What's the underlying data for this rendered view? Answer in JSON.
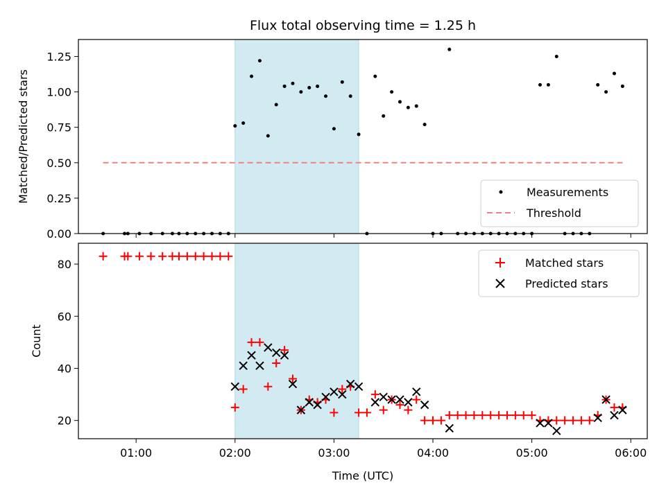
{
  "chart_data": [
    {
      "type": "scatter",
      "title": "Flux total observing time = 1.25 h",
      "xlabel": "",
      "ylabel": "Matched/Predicted stars",
      "xlim": [
        "00:25",
        "06:10"
      ],
      "ylim": [
        0,
        1.37
      ],
      "yticks": [
        "0.00",
        "0.25",
        "0.50",
        "0.75",
        "1.00",
        "1.25"
      ],
      "highlight_span": [
        "02:00",
        "03:15"
      ],
      "highlight_color": "#add8e6",
      "legend_position": "lower-right",
      "series": [
        {
          "name": "Measurements",
          "marker": "dot",
          "color": "#000000",
          "points": [
            [
              "00:40",
              0
            ],
            [
              "00:53",
              0
            ],
            [
              "00:55",
              0
            ],
            [
              "01:02",
              0
            ],
            [
              "01:09",
              0
            ],
            [
              "01:16",
              0
            ],
            [
              "01:22",
              0
            ],
            [
              "01:26",
              0
            ],
            [
              "01:31",
              0
            ],
            [
              "01:36",
              0
            ],
            [
              "01:41",
              0
            ],
            [
              "01:46",
              0
            ],
            [
              "01:51",
              0
            ],
            [
              "01:56",
              0
            ],
            [
              "02:00",
              0.76
            ],
            [
              "02:05",
              0.78
            ],
            [
              "02:10",
              1.11
            ],
            [
              "02:15",
              1.22
            ],
            [
              "02:20",
              0.69
            ],
            [
              "02:25",
              0.91
            ],
            [
              "02:30",
              1.04
            ],
            [
              "02:35",
              1.06
            ],
            [
              "02:40",
              1.0
            ],
            [
              "02:45",
              1.03
            ],
            [
              "02:50",
              1.04
            ],
            [
              "02:55",
              0.97
            ],
            [
              "03:00",
              0.74
            ],
            [
              "03:05",
              1.07
            ],
            [
              "03:10",
              0.97
            ],
            [
              "03:15",
              0.7
            ],
            [
              "03:20",
              0
            ],
            [
              "03:25",
              1.11
            ],
            [
              "03:30",
              0.83
            ],
            [
              "03:35",
              1.0
            ],
            [
              "03:40",
              0.93
            ],
            [
              "03:45",
              0.89
            ],
            [
              "03:50",
              0.9
            ],
            [
              "03:55",
              0.77
            ],
            [
              "04:00",
              0
            ],
            [
              "04:05",
              0
            ],
            [
              "04:10",
              1.3
            ],
            [
              "04:15",
              0
            ],
            [
              "04:20",
              0
            ],
            [
              "04:25",
              0
            ],
            [
              "04:30",
              0
            ],
            [
              "04:35",
              0
            ],
            [
              "04:40",
              0
            ],
            [
              "04:45",
              0
            ],
            [
              "04:50",
              0
            ],
            [
              "04:55",
              0
            ],
            [
              "05:00",
              0
            ],
            [
              "05:05",
              1.05
            ],
            [
              "05:10",
              1.05
            ],
            [
              "05:15",
              1.25
            ],
            [
              "05:20",
              0
            ],
            [
              "05:25",
              0
            ],
            [
              "05:30",
              0
            ],
            [
              "05:35",
              0
            ],
            [
              "05:40",
              1.05
            ],
            [
              "05:45",
              1.0
            ],
            [
              "05:50",
              1.13
            ],
            [
              "05:55",
              1.04
            ]
          ]
        },
        {
          "name": "Threshold",
          "marker": "dashed-line",
          "color": "#f08080",
          "points": [
            [
              "00:40",
              0.5
            ],
            [
              "05:55",
              0.5
            ]
          ]
        }
      ]
    },
    {
      "type": "scatter",
      "title": "",
      "xlabel": "Time (UTC)",
      "ylabel": "Count",
      "xlim": [
        "00:25",
        "06:10"
      ],
      "ylim": [
        13,
        88
      ],
      "yticks": [
        "20",
        "40",
        "60",
        "80"
      ],
      "xticks": [
        "01:00",
        "02:00",
        "03:00",
        "04:00",
        "05:00",
        "06:00"
      ],
      "highlight_span": [
        "02:00",
        "03:15"
      ],
      "highlight_color": "#add8e6",
      "legend_position": "upper-right",
      "series": [
        {
          "name": "Matched stars",
          "marker": "plus",
          "color": "#ff0000",
          "points": [
            [
              "00:40",
              83
            ],
            [
              "00:53",
              83
            ],
            [
              "00:55",
              83
            ],
            [
              "01:02",
              83
            ],
            [
              "01:09",
              83
            ],
            [
              "01:16",
              83
            ],
            [
              "01:22",
              83
            ],
            [
              "01:26",
              83
            ],
            [
              "01:31",
              83
            ],
            [
              "01:36",
              83
            ],
            [
              "01:41",
              83
            ],
            [
              "01:46",
              83
            ],
            [
              "01:51",
              83
            ],
            [
              "01:56",
              83
            ],
            [
              "02:00",
              25
            ],
            [
              "02:05",
              32
            ],
            [
              "02:10",
              50
            ],
            [
              "02:15",
              50
            ],
            [
              "02:20",
              33
            ],
            [
              "02:25",
              42
            ],
            [
              "02:30",
              47
            ],
            [
              "02:35",
              36
            ],
            [
              "02:40",
              24
            ],
            [
              "02:45",
              28
            ],
            [
              "02:50",
              27
            ],
            [
              "02:55",
              28
            ],
            [
              "03:00",
              23
            ],
            [
              "03:05",
              32
            ],
            [
              "03:10",
              33
            ],
            [
              "03:15",
              23
            ],
            [
              "03:20",
              23
            ],
            [
              "03:25",
              30
            ],
            [
              "03:30",
              24
            ],
            [
              "03:35",
              28
            ],
            [
              "03:40",
              26
            ],
            [
              "03:45",
              24
            ],
            [
              "03:50",
              28
            ],
            [
              "03:55",
              20
            ],
            [
              "04:00",
              20
            ],
            [
              "04:05",
              20
            ],
            [
              "04:10",
              22
            ],
            [
              "04:15",
              22
            ],
            [
              "04:20",
              22
            ],
            [
              "04:25",
              22
            ],
            [
              "04:30",
              22
            ],
            [
              "04:35",
              22
            ],
            [
              "04:40",
              22
            ],
            [
              "04:45",
              22
            ],
            [
              "04:50",
              22
            ],
            [
              "04:55",
              22
            ],
            [
              "05:00",
              22
            ],
            [
              "05:05",
              20
            ],
            [
              "05:10",
              20
            ],
            [
              "05:15",
              20
            ],
            [
              "05:20",
              20
            ],
            [
              "05:25",
              20
            ],
            [
              "05:30",
              20
            ],
            [
              "05:35",
              20
            ],
            [
              "05:40",
              22
            ],
            [
              "05:45",
              28
            ],
            [
              "05:50",
              25
            ],
            [
              "05:55",
              25
            ]
          ]
        },
        {
          "name": "Predicted stars",
          "marker": "x",
          "color": "#000000",
          "points": [
            [
              "02:00",
              33
            ],
            [
              "02:05",
              41
            ],
            [
              "02:10",
              45
            ],
            [
              "02:15",
              41
            ],
            [
              "02:20",
              48
            ],
            [
              "02:25",
              46
            ],
            [
              "02:30",
              45
            ],
            [
              "02:35",
              34
            ],
            [
              "02:40",
              24
            ],
            [
              "02:45",
              27
            ],
            [
              "02:50",
              26
            ],
            [
              "02:55",
              29
            ],
            [
              "03:00",
              31
            ],
            [
              "03:05",
              30
            ],
            [
              "03:10",
              34
            ],
            [
              "03:15",
              33
            ],
            [
              "03:25",
              27
            ],
            [
              "03:30",
              29
            ],
            [
              "03:35",
              28
            ],
            [
              "03:40",
              28
            ],
            [
              "03:45",
              27
            ],
            [
              "03:50",
              31
            ],
            [
              "03:55",
              26
            ],
            [
              "04:10",
              17
            ],
            [
              "05:05",
              19
            ],
            [
              "05:10",
              19
            ],
            [
              "05:15",
              16
            ],
            [
              "05:40",
              21
            ],
            [
              "05:45",
              28
            ],
            [
              "05:50",
              22
            ],
            [
              "05:55",
              24
            ]
          ]
        }
      ]
    }
  ]
}
